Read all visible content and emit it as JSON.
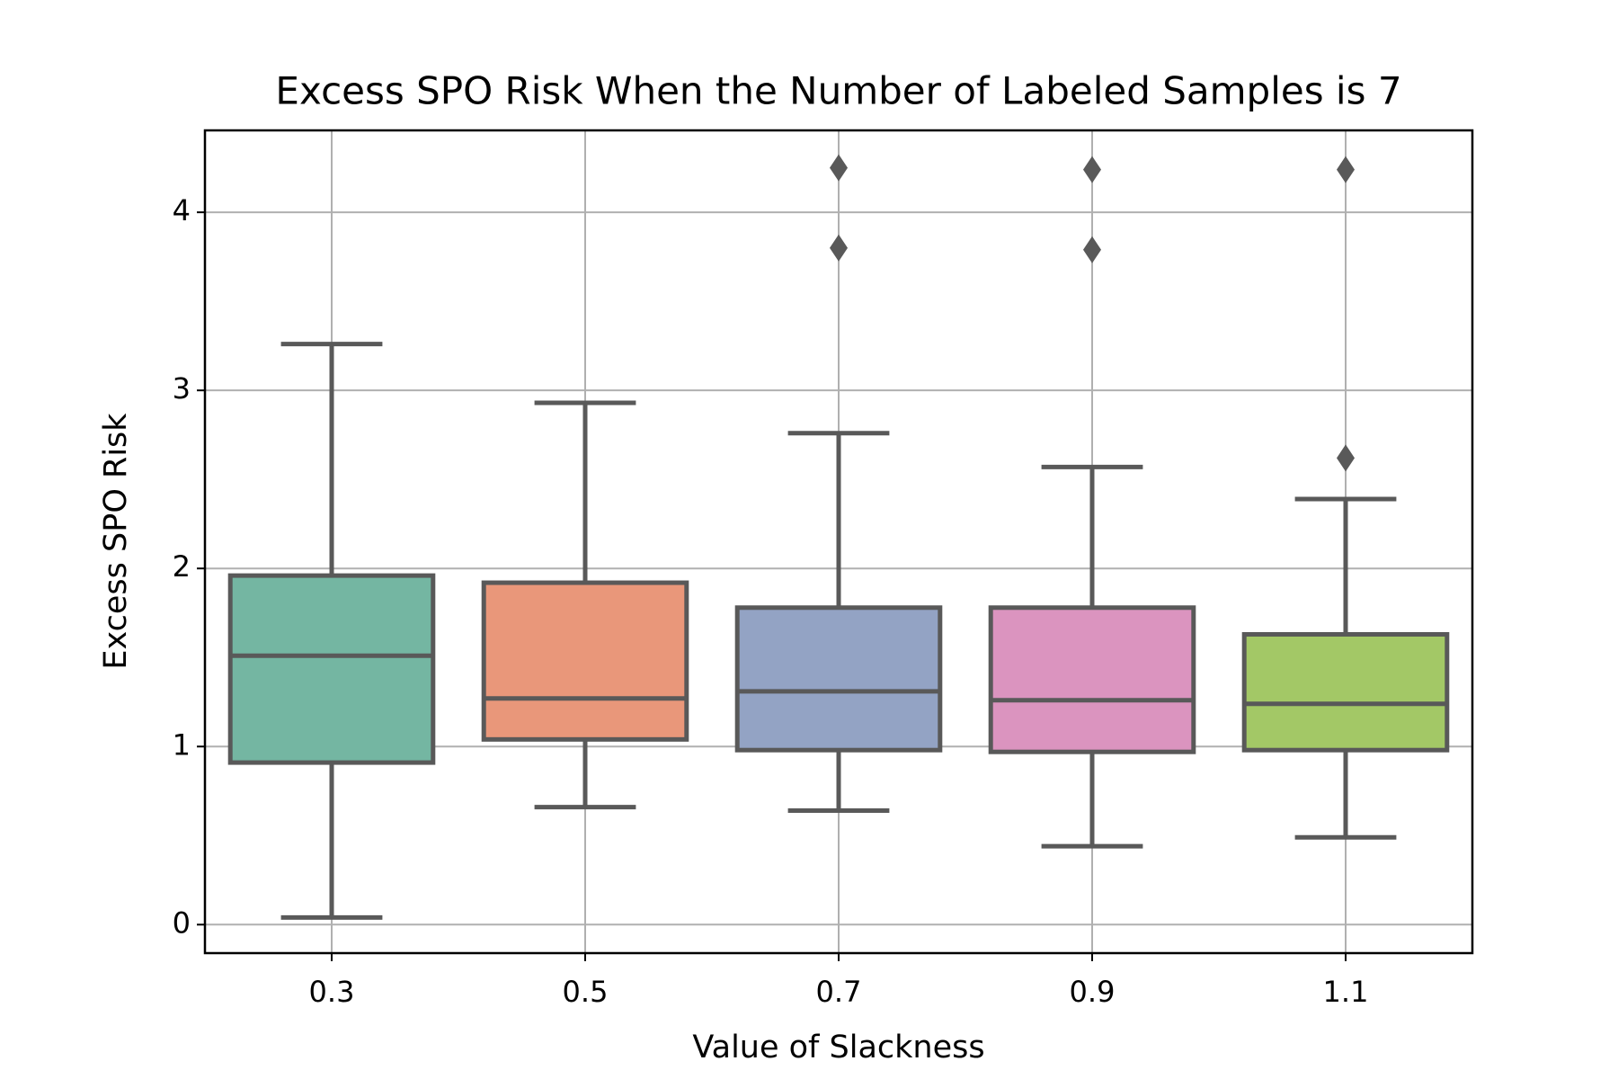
{
  "chart_data": {
    "type": "box",
    "title": "Excess SPO Risk When the Number of Labeled Samples is 7",
    "x_label": "Value of Slackness",
    "y_label": "Excess SPO Risk",
    "categories": [
      "0.3",
      "0.5",
      "0.7",
      "0.9",
      "1.1"
    ],
    "boxes": [
      {
        "whisker_low": 0.04,
        "q1": 0.91,
        "median": 1.51,
        "q3": 1.96,
        "whisker_high": 3.26,
        "outliers": [],
        "color": "#74b6a2"
      },
      {
        "whisker_low": 0.66,
        "q1": 1.04,
        "median": 1.27,
        "q3": 1.92,
        "whisker_high": 2.93,
        "outliers": [],
        "color": "#e9977a"
      },
      {
        "whisker_low": 0.64,
        "q1": 0.98,
        "median": 1.31,
        "q3": 1.78,
        "whisker_high": 2.76,
        "outliers": [
          4.25,
          3.8
        ],
        "color": "#93a3c4"
      },
      {
        "whisker_low": 0.44,
        "q1": 0.97,
        "median": 1.26,
        "q3": 1.78,
        "whisker_high": 2.57,
        "outliers": [
          4.24,
          3.79
        ],
        "color": "#db94bf"
      },
      {
        "whisker_low": 0.49,
        "q1": 0.98,
        "median": 1.24,
        "q3": 1.63,
        "whisker_high": 2.39,
        "outliers": [
          4.24,
          2.62
        ],
        "color": "#a3c866"
      }
    ],
    "edge_color": "#595959",
    "ylim": [
      -0.16,
      4.46
    ],
    "yticks": [
      0,
      1,
      2,
      3,
      4
    ],
    "grid": true
  }
}
